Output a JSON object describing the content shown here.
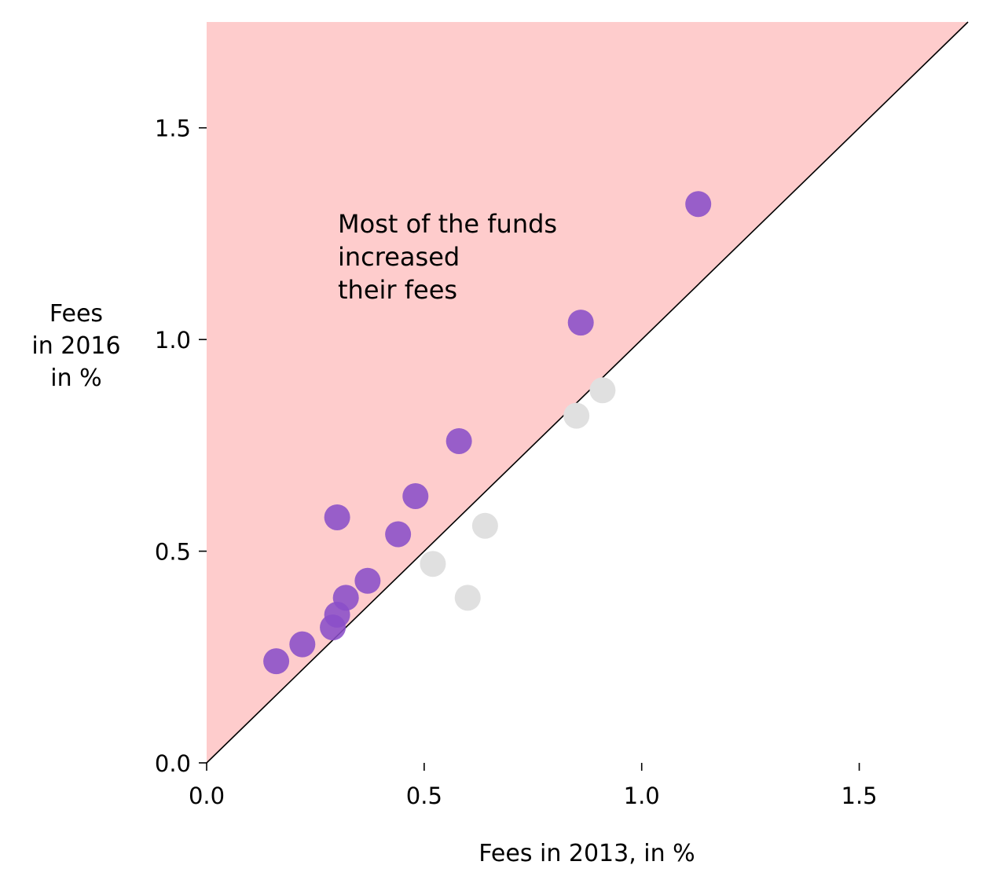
{
  "chart_data": {
    "type": "scatter",
    "title": "",
    "xlabel": "Fees in 2013, in %",
    "ylabel": [
      "Fees",
      "in 2016",
      "in %"
    ],
    "xlim": [
      0,
      1.75
    ],
    "ylim": [
      0,
      1.75
    ],
    "xticks": [
      "0.0",
      "0.5",
      "1.0",
      "1.5"
    ],
    "yticks": [
      "0.0",
      "0.5",
      "1.0",
      "1.5"
    ],
    "xtick_values": [
      0,
      0.5,
      1.0,
      1.5
    ],
    "ytick_values": [
      0,
      0.5,
      1.0,
      1.5
    ],
    "grid": false,
    "reference_line": "y = x",
    "shaded_region": "above y = x",
    "annotation": [
      "Most of the funds",
      "increased",
      "their fees"
    ],
    "colors": {
      "increased": "#8a4fc8",
      "decreased": "#e0e0e0",
      "shade": "#fecccc",
      "line": "#000000"
    },
    "series": [
      {
        "group": "increased",
        "points": [
          {
            "x": 0.16,
            "y": 0.24
          },
          {
            "x": 0.22,
            "y": 0.28
          },
          {
            "x": 0.29,
            "y": 0.32
          },
          {
            "x": 0.3,
            "y": 0.35
          },
          {
            "x": 0.32,
            "y": 0.39
          },
          {
            "x": 0.37,
            "y": 0.43
          },
          {
            "x": 0.3,
            "y": 0.58
          },
          {
            "x": 0.44,
            "y": 0.54
          },
          {
            "x": 0.48,
            "y": 0.63
          },
          {
            "x": 0.58,
            "y": 0.76
          },
          {
            "x": 0.86,
            "y": 1.04
          },
          {
            "x": 1.13,
            "y": 1.32
          }
        ]
      },
      {
        "group": "decreased",
        "points": [
          {
            "x": 0.52,
            "y": 0.47
          },
          {
            "x": 0.6,
            "y": 0.39
          },
          {
            "x": 0.64,
            "y": 0.56
          },
          {
            "x": 0.85,
            "y": 0.82
          },
          {
            "x": 0.91,
            "y": 0.88
          }
        ]
      }
    ]
  }
}
